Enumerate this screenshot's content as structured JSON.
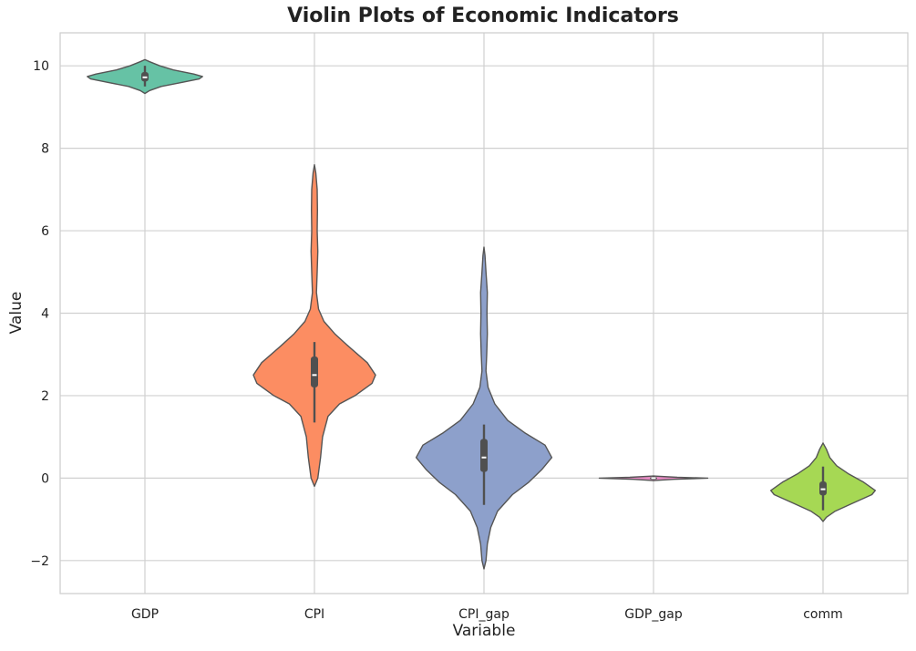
{
  "chart_data": {
    "type": "violin",
    "title": "Violin Plots of Economic Indicators",
    "xlabel": "Variable",
    "ylabel": "Value",
    "ylim": [
      -2.8,
      10.8
    ],
    "yticks": [
      -2,
      0,
      2,
      4,
      6,
      8,
      10
    ],
    "grid": true,
    "categories": [
      "GDP",
      "CPI",
      "CPI_gap",
      "GDP_gap",
      "comm"
    ],
    "colors": [
      "#66c2a5",
      "#fc8d62",
      "#8da0cb",
      "#e78ac3",
      "#a6d854"
    ],
    "violins": [
      {
        "name": "GDP",
        "profile": [
          [
            9.33,
            0
          ],
          [
            9.4,
            0.07
          ],
          [
            9.5,
            0.24
          ],
          [
            9.6,
            0.55
          ],
          [
            9.68,
            0.8
          ],
          [
            9.74,
            0.85
          ],
          [
            9.8,
            0.72
          ],
          [
            9.9,
            0.42
          ],
          [
            10.0,
            0.22
          ],
          [
            10.1,
            0.07
          ],
          [
            10.15,
            0
          ]
        ],
        "box": {
          "q1": 9.62,
          "median": 9.72,
          "q3": 9.85,
          "whisker_low": 9.5,
          "whisker_high": 10.0
        }
      },
      {
        "name": "CPI",
        "profile": [
          [
            -0.2,
            0
          ],
          [
            0.0,
            0.05
          ],
          [
            0.5,
            0.09
          ],
          [
            1.0,
            0.12
          ],
          [
            1.5,
            0.2
          ],
          [
            1.8,
            0.37
          ],
          [
            2.0,
            0.6
          ],
          [
            2.3,
            0.85
          ],
          [
            2.5,
            0.9
          ],
          [
            2.8,
            0.78
          ],
          [
            3.2,
            0.5
          ],
          [
            3.5,
            0.3
          ],
          [
            3.8,
            0.14
          ],
          [
            4.1,
            0.06
          ],
          [
            4.5,
            0.03
          ],
          [
            5.0,
            0.04
          ],
          [
            5.5,
            0.05
          ],
          [
            6.0,
            0.04
          ],
          [
            6.5,
            0.045
          ],
          [
            7.0,
            0.04
          ],
          [
            7.4,
            0.02
          ],
          [
            7.6,
            0
          ]
        ],
        "box": {
          "q1": 2.2,
          "median": 2.5,
          "q3": 2.95,
          "whisker_low": 1.35,
          "whisker_high": 3.3
        }
      },
      {
        "name": "CPI_gap",
        "profile": [
          [
            -2.2,
            0
          ],
          [
            -2.0,
            0.03
          ],
          [
            -1.6,
            0.05
          ],
          [
            -1.2,
            0.1
          ],
          [
            -0.8,
            0.2
          ],
          [
            -0.4,
            0.42
          ],
          [
            -0.1,
            0.66
          ],
          [
            0.2,
            0.85
          ],
          [
            0.5,
            1.0
          ],
          [
            0.8,
            0.9
          ],
          [
            1.1,
            0.6
          ],
          [
            1.4,
            0.35
          ],
          [
            1.8,
            0.16
          ],
          [
            2.2,
            0.06
          ],
          [
            2.6,
            0.03
          ],
          [
            3.0,
            0.04
          ],
          [
            3.5,
            0.05
          ],
          [
            4.0,
            0.045
          ],
          [
            4.5,
            0.05
          ],
          [
            5.0,
            0.03
          ],
          [
            5.4,
            0.015
          ],
          [
            5.6,
            0
          ]
        ],
        "box": {
          "q1": 0.15,
          "median": 0.5,
          "q3": 0.95,
          "whisker_low": -0.65,
          "whisker_high": 1.3
        }
      },
      {
        "name": "GDP_gap",
        "profile": [
          [
            -0.06,
            0
          ],
          [
            -0.03,
            0.3
          ],
          [
            0.0,
            0.8
          ],
          [
            0.02,
            0.35
          ],
          [
            0.05,
            0
          ]
        ],
        "box": {
          "q1": -0.01,
          "median": 0.0,
          "q3": 0.03,
          "whisker_low": -0.04,
          "whisker_high": 0.06
        }
      },
      {
        "name": "comm",
        "profile": [
          [
            -1.05,
            0
          ],
          [
            -0.95,
            0.05
          ],
          [
            -0.8,
            0.18
          ],
          [
            -0.6,
            0.45
          ],
          [
            -0.4,
            0.72
          ],
          [
            -0.3,
            0.77
          ],
          [
            -0.1,
            0.6
          ],
          [
            0.1,
            0.38
          ],
          [
            0.3,
            0.2
          ],
          [
            0.5,
            0.1
          ],
          [
            0.7,
            0.05
          ],
          [
            0.85,
            0
          ]
        ],
        "box": {
          "q1": -0.42,
          "median": -0.27,
          "q3": -0.08,
          "whisker_low": -0.78,
          "whisker_high": 0.28
        }
      }
    ]
  }
}
